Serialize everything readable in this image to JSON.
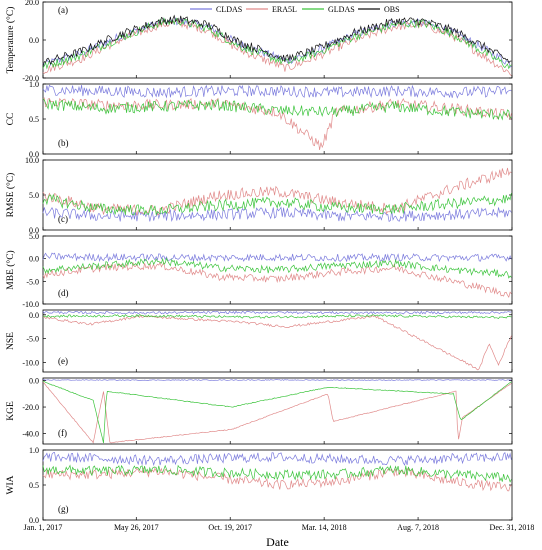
{
  "chart_data": [
    {
      "type": "line",
      "panel_label": "(a)",
      "ylabel": "Temperature (°C)",
      "ylim": [
        -20,
        20
      ],
      "yticks": [
        "20.0",
        "0.0",
        "-20.0"
      ],
      "ytick_values": [
        20,
        0,
        -20
      ],
      "xlim": [
        "2017-01-01",
        "2018-12-31"
      ],
      "legend": {
        "placement": "top-center",
        "entries": [
          "CLDAS",
          "ERA5L",
          "GLDAS",
          "OBS"
        ]
      },
      "series": [
        {
          "name": "CLDAS",
          "color": "#7b7bdd",
          "x": [
            "2017-01-01",
            "2017-03-01",
            "2017-05-01",
            "2017-07-01",
            "2017-08-01",
            "2017-09-15",
            "2017-11-01",
            "2018-01-15",
            "2018-03-01",
            "2018-05-01",
            "2018-07-01",
            "2018-08-15",
            "2018-10-01",
            "2018-11-15",
            "2018-12-31"
          ],
          "values": [
            -13,
            -7,
            2,
            9,
            10,
            7,
            -2,
            -11,
            -6,
            3,
            9,
            9,
            4,
            -4,
            -13
          ]
        },
        {
          "name": "ERA5L",
          "color": "#e08a8a",
          "x": [
            "2017-01-01",
            "2017-03-01",
            "2017-05-01",
            "2017-07-01",
            "2017-08-01",
            "2017-09-15",
            "2017-11-01",
            "2018-01-15",
            "2018-03-01",
            "2018-05-01",
            "2018-07-01",
            "2018-08-15",
            "2018-10-01",
            "2018-11-15",
            "2018-12-31"
          ],
          "values": [
            -16,
            -10,
            0,
            8,
            9,
            5,
            -5,
            -15,
            -9,
            0,
            7,
            8,
            2,
            -8,
            -18
          ]
        },
        {
          "name": "GLDAS",
          "color": "#3cc43c",
          "x": [
            "2017-01-01",
            "2017-03-01",
            "2017-05-01",
            "2017-07-01",
            "2017-08-01",
            "2017-09-15",
            "2017-11-01",
            "2018-01-15",
            "2018-03-01",
            "2018-05-01",
            "2018-07-01",
            "2018-08-15",
            "2018-10-01",
            "2018-11-15",
            "2018-12-31"
          ],
          "values": [
            -14,
            -8,
            1,
            9,
            10,
            6,
            -3,
            -12,
            -7,
            2,
            8,
            9,
            3,
            -6,
            -15
          ]
        },
        {
          "name": "OBS",
          "color": "#111111",
          "x": [
            "2017-01-01",
            "2017-03-01",
            "2017-05-01",
            "2017-07-01",
            "2017-08-01",
            "2017-09-15",
            "2017-11-01",
            "2018-01-15",
            "2018-03-01",
            "2018-05-01",
            "2018-07-01",
            "2018-08-15",
            "2018-10-01",
            "2018-11-15",
            "2018-12-31"
          ],
          "values": [
            -12,
            -6,
            3,
            10,
            11,
            8,
            -1,
            -10,
            -5,
            4,
            10,
            10,
            5,
            -3,
            -12
          ]
        }
      ]
    },
    {
      "type": "line",
      "panel_label": "(b)",
      "ylabel": "CC",
      "ylim": [
        0,
        1
      ],
      "yticks": [
        "1.0",
        "0.5",
        "0.0"
      ],
      "ytick_values": [
        1,
        0.5,
        0
      ],
      "xlim": [
        "2017-01-01",
        "2018-12-31"
      ],
      "series": [
        {
          "name": "CLDAS",
          "color": "#7b7bdd",
          "x": [
            "2017-01-01",
            "2017-04-01",
            "2017-07-01",
            "2017-10-01",
            "2018-01-01",
            "2018-04-01",
            "2018-07-01",
            "2018-10-01",
            "2018-12-31"
          ],
          "values": [
            0.92,
            0.9,
            0.88,
            0.9,
            0.9,
            0.88,
            0.9,
            0.88,
            0.9
          ]
        },
        {
          "name": "ERA5L",
          "color": "#e08a8a",
          "x": [
            "2017-01-01",
            "2017-04-01",
            "2017-07-01",
            "2017-10-01",
            "2018-01-01",
            "2018-03-10",
            "2018-04-01",
            "2018-07-01",
            "2018-10-01",
            "2018-12-31"
          ],
          "values": [
            0.75,
            0.7,
            0.7,
            0.72,
            0.6,
            0.1,
            0.6,
            0.72,
            0.65,
            0.55
          ]
        },
        {
          "name": "GLDAS",
          "color": "#3cc43c",
          "x": [
            "2017-01-01",
            "2017-04-01",
            "2017-07-01",
            "2017-10-01",
            "2018-01-01",
            "2018-04-01",
            "2018-07-01",
            "2018-10-01",
            "2018-12-31"
          ],
          "values": [
            0.72,
            0.65,
            0.68,
            0.7,
            0.62,
            0.6,
            0.68,
            0.6,
            0.55
          ]
        }
      ]
    },
    {
      "type": "line",
      "panel_label": "(c)",
      "ylabel": "RMSE (°C)",
      "ylim": [
        0,
        10
      ],
      "yticks": [
        "10.0",
        "5.0",
        "0.0"
      ],
      "ytick_values": [
        10,
        5,
        0
      ],
      "xlim": [
        "2017-01-01",
        "2018-12-31"
      ],
      "series": [
        {
          "name": "CLDAS",
          "color": "#7b7bdd",
          "x": [
            "2017-01-01",
            "2017-04-01",
            "2017-07-01",
            "2017-10-01",
            "2018-01-01",
            "2018-04-01",
            "2018-07-01",
            "2018-10-01",
            "2018-12-31"
          ],
          "values": [
            2.5,
            2.0,
            2.0,
            2.2,
            2.5,
            2.0,
            2.0,
            2.2,
            2.5
          ]
        },
        {
          "name": "ERA5L",
          "color": "#e08a8a",
          "x": [
            "2017-01-01",
            "2017-04-01",
            "2017-07-01",
            "2017-10-01",
            "2018-01-01",
            "2018-04-01",
            "2018-07-01",
            "2018-10-01",
            "2018-12-31"
          ],
          "values": [
            5.0,
            3.0,
            2.8,
            5.0,
            5.5,
            4.0,
            3.0,
            6.0,
            8.5
          ]
        },
        {
          "name": "GLDAS",
          "color": "#3cc43c",
          "x": [
            "2017-01-01",
            "2017-04-01",
            "2017-07-01",
            "2017-10-01",
            "2018-01-01",
            "2018-04-01",
            "2018-07-01",
            "2018-10-01",
            "2018-12-31"
          ],
          "values": [
            4.5,
            3.0,
            2.8,
            3.5,
            4.0,
            3.2,
            3.0,
            3.8,
            4.5
          ]
        }
      ]
    },
    {
      "type": "line",
      "panel_label": "(d)",
      "ylabel": "MBE (°C)",
      "ylim": [
        -10,
        5
      ],
      "yticks": [
        "5.0",
        "0.0",
        "-5.0",
        "-10.0"
      ],
      "ytick_values": [
        5,
        0,
        -5,
        -10
      ],
      "xlim": [
        "2017-01-01",
        "2018-12-31"
      ],
      "series": [
        {
          "name": "CLDAS",
          "color": "#7b7bdd",
          "x": [
            "2017-01-01",
            "2017-04-01",
            "2017-07-01",
            "2017-10-01",
            "2018-01-01",
            "2018-04-01",
            "2018-07-01",
            "2018-10-01",
            "2018-12-31"
          ],
          "values": [
            0.5,
            0.3,
            0.3,
            0.2,
            0.3,
            0.2,
            0.3,
            0.2,
            0.3
          ]
        },
        {
          "name": "ERA5L",
          "color": "#e08a8a",
          "x": [
            "2017-01-01",
            "2017-04-01",
            "2017-07-01",
            "2017-10-01",
            "2018-01-01",
            "2018-04-01",
            "2018-07-01",
            "2018-10-01",
            "2018-12-31"
          ],
          "values": [
            -3.5,
            -2.0,
            -1.5,
            -4.0,
            -4.5,
            -3.0,
            -2.0,
            -5.0,
            -8.0
          ]
        },
        {
          "name": "GLDAS",
          "color": "#3cc43c",
          "x": [
            "2017-01-01",
            "2017-04-01",
            "2017-07-01",
            "2017-10-01",
            "2018-01-01",
            "2018-04-01",
            "2018-07-01",
            "2018-10-01",
            "2018-12-31"
          ],
          "values": [
            -2.5,
            -1.5,
            -0.5,
            -2.0,
            -2.5,
            -1.5,
            -1.0,
            -2.5,
            -3.5
          ]
        }
      ]
    },
    {
      "type": "line",
      "panel_label": "(e)",
      "ylabel": "NSE",
      "ylim": [
        -12,
        1
      ],
      "yticks": [
        "0.0",
        "-5.0",
        "-10.0"
      ],
      "ytick_values": [
        0,
        -5,
        -10
      ],
      "xlim": [
        "2017-01-01",
        "2018-12-31"
      ],
      "series": [
        {
          "name": "CLDAS",
          "color": "#7b7bdd",
          "x": [
            "2017-01-01",
            "2017-06-01",
            "2017-12-01",
            "2018-06-01",
            "2018-12-31"
          ],
          "values": [
            0.5,
            0.4,
            0.5,
            0.4,
            0.5
          ]
        },
        {
          "name": "ERA5L",
          "color": "#e08a8a",
          "x": [
            "2017-01-01",
            "2017-03-15",
            "2017-06-01",
            "2017-11-01",
            "2018-01-15",
            "2018-06-01",
            "2018-11-10",
            "2018-11-25",
            "2018-12-10",
            "2018-12-31"
          ],
          "values": [
            -0.5,
            -2.0,
            -0.3,
            -1.5,
            -2.5,
            -0.3,
            -11.5,
            -6.0,
            -10.5,
            -4.0
          ]
        },
        {
          "name": "GLDAS",
          "color": "#3cc43c",
          "x": [
            "2017-01-01",
            "2017-06-01",
            "2017-12-01",
            "2018-06-01",
            "2018-12-31"
          ],
          "values": [
            -0.3,
            -0.2,
            -0.5,
            -0.2,
            -0.6
          ]
        }
      ]
    },
    {
      "type": "line",
      "panel_label": "(f)",
      "ylabel": "KGE",
      "ylim": [
        -48,
        2
      ],
      "yticks": [
        "0.0",
        "-20.0",
        "-40.0"
      ],
      "ytick_values": [
        0,
        -20,
        -40
      ],
      "xlim": [
        "2017-01-01",
        "2018-12-31"
      ],
      "series": [
        {
          "name": "CLDAS",
          "color": "#7b7bdd",
          "x": [
            "2017-01-01",
            "2017-06-01",
            "2017-12-01",
            "2018-06-01",
            "2018-12-31"
          ],
          "values": [
            0.5,
            0.4,
            0.5,
            0.4,
            0.5
          ]
        },
        {
          "name": "ERA5L",
          "color": "#e08a8a",
          "x": [
            "2017-01-01",
            "2017-03-20",
            "2017-04-05",
            "2017-04-15",
            "2017-10-21",
            "2018-03-20",
            "2018-03-28",
            "2018-10-05",
            "2018-10-08",
            "2018-10-15",
            "2018-12-31"
          ],
          "values": [
            -1.0,
            -47.0,
            -8.0,
            -47.0,
            -37.0,
            -10.0,
            -31.0,
            -8.0,
            -47.0,
            -28.0,
            -1.5
          ]
        },
        {
          "name": "GLDAS",
          "color": "#3cc43c",
          "x": [
            "2017-01-01",
            "2017-03-20",
            "2017-04-05",
            "2017-04-10",
            "2017-10-21",
            "2018-03-20",
            "2018-10-01",
            "2018-10-12",
            "2018-12-31"
          ],
          "values": [
            -0.5,
            -15.0,
            -47.0,
            -8.0,
            -20.0,
            -5.0,
            -10.0,
            -30.0,
            -0.5
          ]
        }
      ]
    },
    {
      "type": "line",
      "panel_label": "(g)",
      "ylabel": "WIA",
      "ylim": [
        0,
        1
      ],
      "yticks": [
        "1.0",
        "0.5",
        "0.0"
      ],
      "ytick_values": [
        1,
        0.5,
        0
      ],
      "xlim": [
        "2017-01-01",
        "2018-12-31"
      ],
      "xlabel": "Date",
      "xticks": [
        "Jan. 1, 2017",
        "May 26, 2017",
        "Oct. 19, 2017",
        "Mar. 14, 2018",
        "Aug. 7, 2018",
        "Dec. 31, 2018"
      ],
      "xtick_values": [
        "2017-01-01",
        "2017-05-26",
        "2017-10-19",
        "2018-03-14",
        "2018-08-07",
        "2018-12-31"
      ],
      "series": [
        {
          "name": "CLDAS",
          "color": "#7b7bdd",
          "x": [
            "2017-01-01",
            "2017-04-01",
            "2017-07-01",
            "2017-10-01",
            "2018-01-01",
            "2018-04-01",
            "2018-07-01",
            "2018-10-01",
            "2018-12-31"
          ],
          "values": [
            0.9,
            0.88,
            0.85,
            0.88,
            0.9,
            0.87,
            0.85,
            0.88,
            0.9
          ]
        },
        {
          "name": "ERA5L",
          "color": "#e08a8a",
          "x": [
            "2017-01-01",
            "2017-04-01",
            "2017-07-01",
            "2017-10-01",
            "2018-01-01",
            "2018-04-01",
            "2018-07-01",
            "2018-10-01",
            "2018-12-31"
          ],
          "values": [
            0.65,
            0.65,
            0.7,
            0.6,
            0.5,
            0.55,
            0.7,
            0.55,
            0.45
          ]
        },
        {
          "name": "GLDAS",
          "color": "#3cc43c",
          "x": [
            "2017-01-01",
            "2017-04-01",
            "2017-07-01",
            "2017-10-01",
            "2018-01-01",
            "2018-04-01",
            "2018-07-01",
            "2018-10-01",
            "2018-12-31"
          ],
          "values": [
            0.72,
            0.7,
            0.72,
            0.68,
            0.65,
            0.65,
            0.72,
            0.65,
            0.6
          ]
        }
      ]
    }
  ]
}
